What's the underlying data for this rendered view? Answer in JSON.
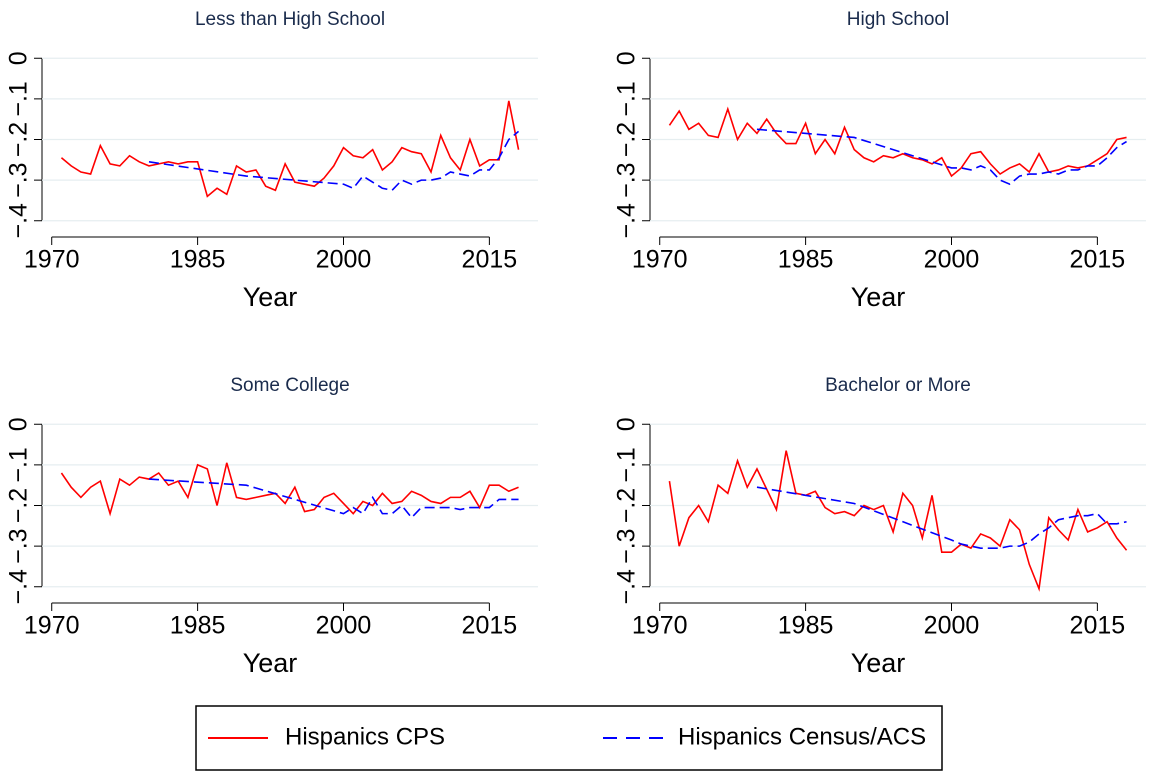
{
  "chart_data": [
    {
      "type": "line",
      "title": "Less than High School",
      "xlabel": "Year",
      "xlim": [
        1969,
        2020
      ],
      "ylim": [
        -0.44,
        0.04
      ],
      "xticks": [
        1970,
        1985,
        2000,
        2015
      ],
      "yticks": [
        0,
        {
          "value": -0.1,
          "label": "−.1"
        },
        {
          "value": -0.2,
          "label": "−.2"
        },
        {
          "value": -0.3,
          "label": "−.3"
        },
        {
          "value": -0.4,
          "label": "−.4"
        }
      ],
      "grid": true,
      "series": [
        {
          "name": "Hispanics CPS",
          "color": "#ff0000",
          "style": "solid",
          "x": [
            1971,
            1972,
            1973,
            1974,
            1975,
            1976,
            1977,
            1978,
            1979,
            1980,
            1981,
            1982,
            1983,
            1984,
            1985,
            1986,
            1987,
            1988,
            1989,
            1990,
            1991,
            1992,
            1993,
            1994,
            1995,
            1996,
            1997,
            1998,
            1999,
            2000,
            2001,
            2002,
            2003,
            2004,
            2005,
            2006,
            2007,
            2008,
            2009,
            2010,
            2011,
            2012,
            2013,
            2014,
            2015,
            2016,
            2017,
            2018
          ],
          "values": [
            -0.245,
            -0.265,
            -0.28,
            -0.285,
            -0.215,
            -0.26,
            -0.265,
            -0.24,
            -0.255,
            -0.265,
            -0.26,
            -0.255,
            -0.26,
            -0.255,
            -0.255,
            -0.34,
            -0.32,
            -0.335,
            -0.265,
            -0.28,
            -0.275,
            -0.315,
            -0.325,
            -0.26,
            -0.305,
            -0.31,
            -0.315,
            -0.295,
            -0.265,
            -0.22,
            -0.24,
            -0.245,
            -0.225,
            -0.275,
            -0.255,
            -0.22,
            -0.23,
            -0.235,
            -0.28,
            -0.19,
            -0.245,
            -0.275,
            -0.2,
            -0.265,
            -0.25,
            -0.25,
            -0.105,
            -0.225
          ]
        },
        {
          "name": "Hispanics Census/ACS",
          "color": "#0000ff",
          "style": "dashed",
          "x": [
            1980,
            1990,
            2000,
            2001,
            2002,
            2003,
            2004,
            2005,
            2006,
            2007,
            2008,
            2009,
            2010,
            2011,
            2012,
            2013,
            2014,
            2015,
            2016,
            2017,
            2018
          ],
          "values": [
            -0.255,
            -0.29,
            -0.31,
            -0.32,
            -0.29,
            -0.305,
            -0.32,
            -0.325,
            -0.3,
            -0.31,
            -0.3,
            -0.3,
            -0.295,
            -0.28,
            -0.285,
            -0.29,
            -0.275,
            -0.275,
            -0.245,
            -0.2,
            -0.18
          ]
        }
      ]
    },
    {
      "type": "line",
      "title": "High School",
      "xlabel": "Year",
      "xlim": [
        1969,
        2020
      ],
      "ylim": [
        -0.44,
        0.04
      ],
      "xticks": [
        1970,
        1985,
        2000,
        2015
      ],
      "yticks": [
        0,
        {
          "value": -0.1,
          "label": "−.1"
        },
        {
          "value": -0.2,
          "label": "−.2"
        },
        {
          "value": -0.3,
          "label": "−.3"
        },
        {
          "value": -0.4,
          "label": "−.4"
        }
      ],
      "grid": true,
      "series": [
        {
          "color": "#ff0000",
          "style": "solid",
          "x": [
            1971,
            1972,
            1973,
            1974,
            1975,
            1976,
            1977,
            1978,
            1979,
            1980,
            1981,
            1982,
            1983,
            1984,
            1985,
            1986,
            1987,
            1988,
            1989,
            1990,
            1991,
            1992,
            1993,
            1994,
            1995,
            1996,
            1997,
            1998,
            1999,
            2000,
            2001,
            2002,
            2003,
            2004,
            2005,
            2006,
            2007,
            2008,
            2009,
            2010,
            2011,
            2012,
            2013,
            2014,
            2015,
            2016,
            2017,
            2018
          ],
          "values": [
            -0.165,
            -0.13,
            -0.175,
            -0.16,
            -0.19,
            -0.195,
            -0.125,
            -0.2,
            -0.16,
            -0.185,
            -0.15,
            -0.185,
            -0.21,
            -0.21,
            -0.16,
            -0.235,
            -0.2,
            -0.235,
            -0.17,
            -0.225,
            -0.245,
            -0.255,
            -0.24,
            -0.245,
            -0.235,
            -0.245,
            -0.25,
            -0.26,
            -0.245,
            -0.29,
            -0.27,
            -0.235,
            -0.23,
            -0.26,
            -0.285,
            -0.27,
            -0.26,
            -0.28,
            -0.235,
            -0.28,
            -0.275,
            -0.265,
            -0.27,
            -0.265,
            -0.25,
            -0.235,
            -0.2,
            -0.195
          ]
        },
        {
          "color": "#0000ff",
          "style": "dashed",
          "x": [
            1980,
            1990,
            2000,
            2001,
            2002,
            2003,
            2004,
            2005,
            2006,
            2007,
            2008,
            2009,
            2010,
            2011,
            2012,
            2013,
            2014,
            2015,
            2016,
            2017,
            2018
          ],
          "values": [
            -0.175,
            -0.195,
            -0.27,
            -0.27,
            -0.275,
            -0.265,
            -0.275,
            -0.3,
            -0.31,
            -0.29,
            -0.285,
            -0.285,
            -0.28,
            -0.285,
            -0.275,
            -0.275,
            -0.265,
            -0.265,
            -0.245,
            -0.22,
            -0.205
          ]
        }
      ]
    },
    {
      "type": "line",
      "title": "Some College",
      "xlabel": "Year",
      "xlim": [
        1969,
        2020
      ],
      "ylim": [
        -0.44,
        0.04
      ],
      "xticks": [
        1970,
        1985,
        2000,
        2015
      ],
      "yticks": [
        0,
        {
          "value": -0.1,
          "label": "−.1"
        },
        {
          "value": -0.2,
          "label": "−.2"
        },
        {
          "value": -0.3,
          "label": "−.3"
        },
        {
          "value": -0.4,
          "label": "−.4"
        }
      ],
      "grid": true,
      "series": [
        {
          "color": "#ff0000",
          "style": "solid",
          "x": [
            1971,
            1972,
            1973,
            1974,
            1975,
            1976,
            1977,
            1978,
            1979,
            1980,
            1981,
            1982,
            1983,
            1984,
            1985,
            1986,
            1987,
            1988,
            1989,
            1990,
            1991,
            1992,
            1993,
            1994,
            1995,
            1996,
            1997,
            1998,
            1999,
            2000,
            2001,
            2002,
            2003,
            2004,
            2005,
            2006,
            2007,
            2008,
            2009,
            2010,
            2011,
            2012,
            2013,
            2014,
            2015,
            2016,
            2017,
            2018
          ],
          "values": [
            -0.12,
            -0.155,
            -0.18,
            -0.155,
            -0.14,
            -0.22,
            -0.135,
            -0.15,
            -0.13,
            -0.135,
            -0.12,
            -0.15,
            -0.14,
            -0.18,
            -0.1,
            -0.11,
            -0.2,
            -0.095,
            -0.18,
            -0.185,
            -0.18,
            -0.175,
            -0.17,
            -0.195,
            -0.155,
            -0.215,
            -0.21,
            -0.18,
            -0.17,
            -0.195,
            -0.22,
            -0.19,
            -0.2,
            -0.17,
            -0.195,
            -0.19,
            -0.165,
            -0.175,
            -0.19,
            -0.195,
            -0.18,
            -0.18,
            -0.165,
            -0.205,
            -0.15,
            -0.15,
            -0.165,
            -0.155
          ]
        },
        {
          "color": "#0000ff",
          "style": "dashed",
          "x": [
            1980,
            1990,
            2000,
            2001,
            2002,
            2003,
            2004,
            2005,
            2006,
            2007,
            2008,
            2009,
            2010,
            2011,
            2012,
            2013,
            2014,
            2015,
            2016,
            2017,
            2018
          ],
          "values": [
            -0.135,
            -0.15,
            -0.22,
            -0.205,
            -0.22,
            -0.18,
            -0.22,
            -0.22,
            -0.2,
            -0.23,
            -0.205,
            -0.205,
            -0.205,
            -0.205,
            -0.21,
            -0.205,
            -0.205,
            -0.205,
            -0.185,
            -0.185,
            -0.185
          ]
        }
      ]
    },
    {
      "type": "line",
      "title": "Bachelor or More",
      "xlabel": "Year",
      "xlim": [
        1969,
        2020
      ],
      "ylim": [
        -0.44,
        0.04
      ],
      "xticks": [
        1970,
        1985,
        2000,
        2015
      ],
      "yticks": [
        0,
        {
          "value": -0.1,
          "label": "−.1"
        },
        {
          "value": -0.2,
          "label": "−.2"
        },
        {
          "value": -0.3,
          "label": "−.3"
        },
        {
          "value": -0.4,
          "label": "−.4"
        }
      ],
      "grid": true,
      "series": [
        {
          "color": "#ff0000",
          "style": "solid",
          "x": [
            1971,
            1972,
            1973,
            1974,
            1975,
            1976,
            1977,
            1978,
            1979,
            1980,
            1981,
            1982,
            1983,
            1984,
            1985,
            1986,
            1987,
            1988,
            1989,
            1990,
            1991,
            1992,
            1993,
            1994,
            1995,
            1996,
            1997,
            1998,
            1999,
            2000,
            2001,
            2002,
            2003,
            2004,
            2005,
            2006,
            2007,
            2008,
            2009,
            2010,
            2011,
            2012,
            2013,
            2014,
            2015,
            2016,
            2017,
            2018
          ],
          "values": [
            -0.14,
            -0.3,
            -0.23,
            -0.2,
            -0.24,
            -0.15,
            -0.17,
            -0.09,
            -0.155,
            -0.11,
            -0.16,
            -0.21,
            -0.065,
            -0.17,
            -0.175,
            -0.165,
            -0.205,
            -0.22,
            -0.215,
            -0.225,
            -0.2,
            -0.21,
            -0.2,
            -0.265,
            -0.17,
            -0.2,
            -0.28,
            -0.175,
            -0.315,
            -0.315,
            -0.295,
            -0.305,
            -0.27,
            -0.28,
            -0.3,
            -0.235,
            -0.26,
            -0.345,
            -0.405,
            -0.23,
            -0.26,
            -0.285,
            -0.21,
            -0.265,
            -0.255,
            -0.24,
            -0.28,
            -0.31
          ]
        },
        {
          "color": "#0000ff",
          "style": "dashed",
          "x": [
            1980,
            1990,
            2000,
            2001,
            2002,
            2003,
            2004,
            2005,
            2006,
            2007,
            2008,
            2009,
            2010,
            2011,
            2012,
            2013,
            2014,
            2015,
            2016,
            2017,
            2018
          ],
          "values": [
            -0.155,
            -0.195,
            -0.285,
            -0.295,
            -0.3,
            -0.305,
            -0.305,
            -0.305,
            -0.3,
            -0.3,
            -0.29,
            -0.27,
            -0.255,
            -0.235,
            -0.23,
            -0.225,
            -0.225,
            -0.22,
            -0.245,
            -0.245,
            -0.24
          ]
        }
      ]
    }
  ]
}
